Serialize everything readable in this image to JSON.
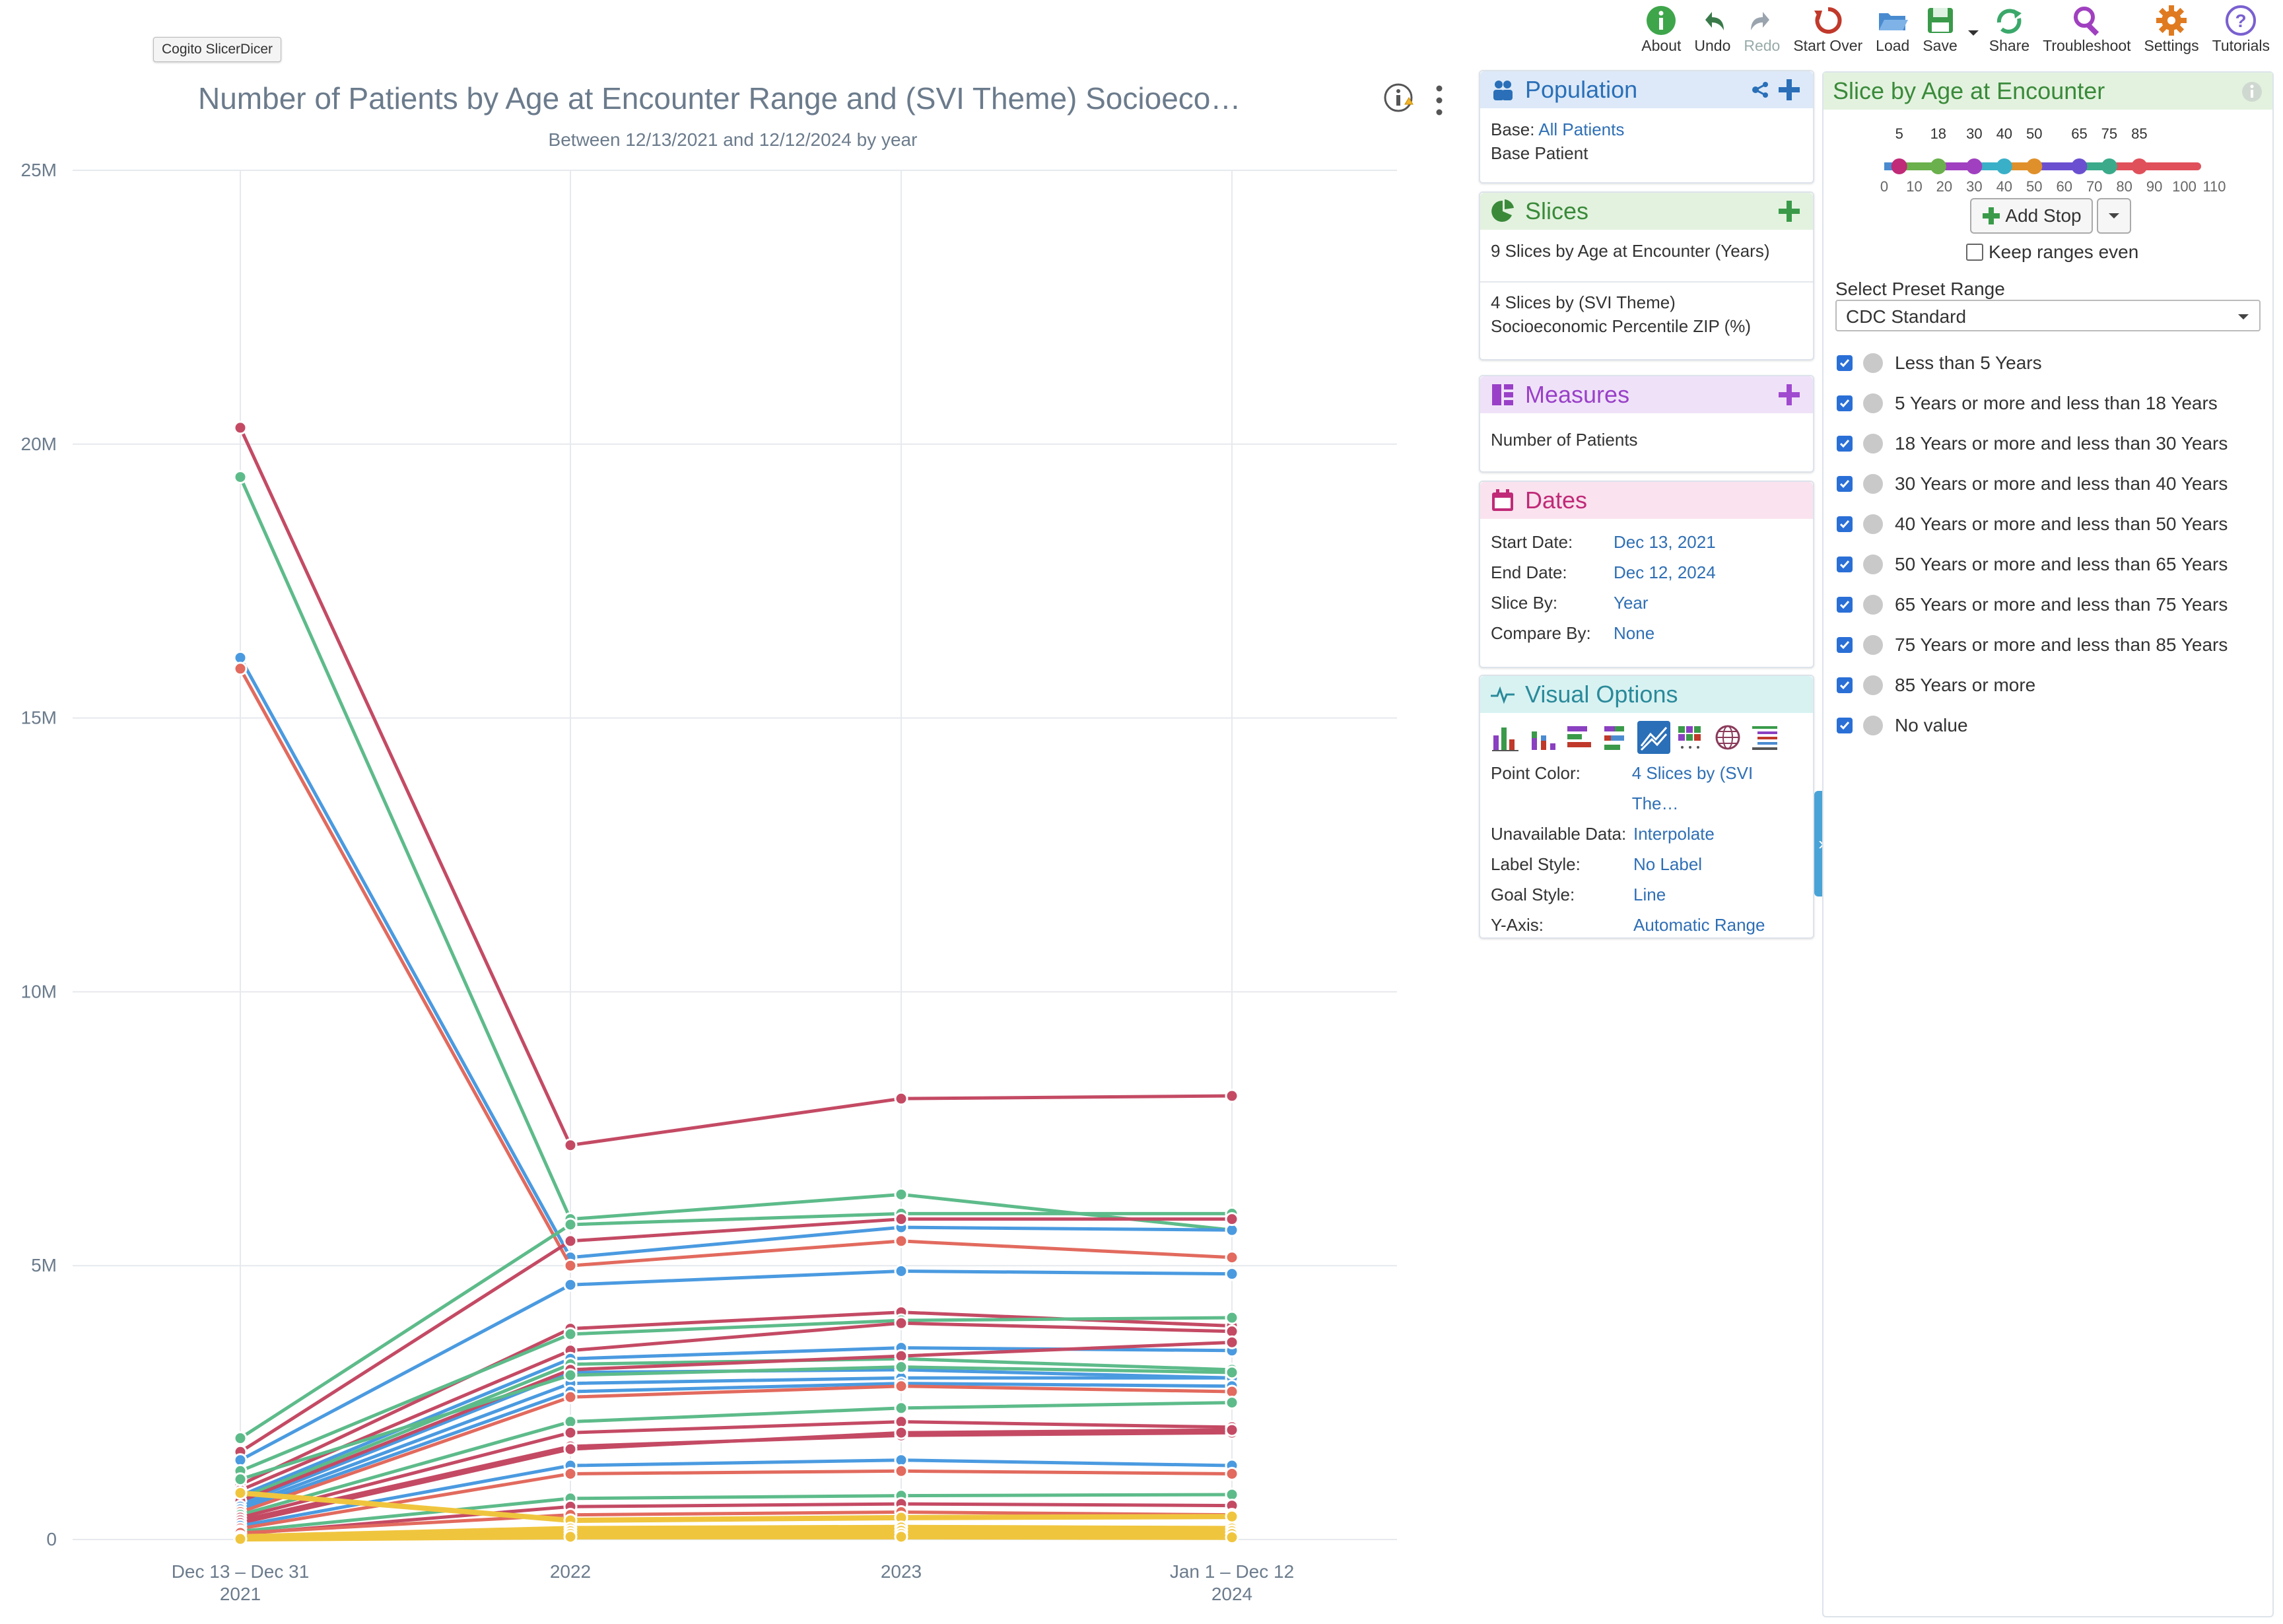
{
  "tooltip": "Cogito SlicerDicer",
  "toolbar": [
    {
      "id": "about",
      "label": "About",
      "icon": "info-circle-icon",
      "color": "#3ea54a"
    },
    {
      "id": "undo",
      "label": "Undo",
      "icon": "undo-icon",
      "color": "#3a7a4a"
    },
    {
      "id": "redo",
      "label": "Redo",
      "icon": "redo-icon",
      "color": "#9aa4ae"
    },
    {
      "id": "startover",
      "label": "Start Over",
      "icon": "start-over-icon",
      "color": "#c0392b"
    },
    {
      "id": "load",
      "label": "Load",
      "icon": "folder-icon",
      "color": "#4a8bd0"
    },
    {
      "id": "save",
      "label": "Save",
      "icon": "save-icon",
      "color": "#3a9a4a"
    },
    {
      "id": "share",
      "label": "Share",
      "icon": "share-icon",
      "color": "#3aa86a"
    },
    {
      "id": "troubleshoot",
      "label": "Troubleshoot",
      "icon": "magnifier-icon",
      "color": "#a040c0"
    },
    {
      "id": "settings",
      "label": "Settings",
      "icon": "gear-icon",
      "color": "#e07a20"
    },
    {
      "id": "tutorials",
      "label": "Tutorials",
      "icon": "question-icon",
      "color": "#7a60d0"
    }
  ],
  "chart": {
    "title": "Number of Patients by Age at Encounter Range and (SVI Theme) Socioeco…",
    "subtitle": "Between 12/13/2021 and 12/12/2024 by year"
  },
  "chart_data": {
    "type": "line",
    "categories": [
      "Dec 13 – Dec 31\n2021",
      "2022",
      "2023",
      "Jan 1 – Dec 12\n2024"
    ],
    "x_labels_line1": [
      "Dec 13 – Dec 31",
      "2022",
      "2023",
      "Jan 1 – Dec 12"
    ],
    "x_labels_line2": [
      "2021",
      "",
      "",
      "2024"
    ],
    "y_ticks": [
      "0",
      "5M",
      "10M",
      "15M",
      "20M",
      "25M"
    ],
    "y_tick_values": [
      0,
      5,
      10,
      15,
      20,
      25
    ],
    "ylim": [
      0,
      25
    ],
    "y_unit": "M",
    "grid": true,
    "colors": {
      "red": "#c44a64",
      "green": "#5dbb8a",
      "blue": "#4a9ae0",
      "orange": "#e26a5e",
      "yellow": "#f0c53e"
    },
    "series": [
      {
        "color": "red",
        "values": [
          20.3,
          7.2,
          8.05,
          8.1
        ]
      },
      {
        "color": "green",
        "values": [
          19.4,
          5.85,
          6.3,
          5.65
        ]
      },
      {
        "color": "blue",
        "values": [
          16.1,
          5.15,
          5.7,
          5.65
        ]
      },
      {
        "color": "orange",
        "values": [
          15.9,
          5.0,
          5.45,
          5.15
        ]
      },
      {
        "color": "green",
        "values": [
          1.85,
          5.75,
          5.95,
          5.95
        ]
      },
      {
        "color": "red",
        "values": [
          1.6,
          5.45,
          5.85,
          5.85
        ]
      },
      {
        "color": "blue",
        "values": [
          1.45,
          4.65,
          4.9,
          4.85
        ]
      },
      {
        "color": "red",
        "values": [
          1.0,
          3.85,
          4.15,
          3.9
        ]
      },
      {
        "color": "green",
        "values": [
          1.25,
          3.75,
          4.0,
          4.05
        ]
      },
      {
        "color": "red",
        "values": [
          0.9,
          3.45,
          3.95,
          3.8
        ]
      },
      {
        "color": "blue",
        "values": [
          0.8,
          3.3,
          3.5,
          3.45
        ]
      },
      {
        "color": "green",
        "values": [
          0.75,
          3.2,
          3.3,
          3.1
        ]
      },
      {
        "color": "blue",
        "values": [
          0.65,
          3.05,
          3.1,
          2.95
        ]
      },
      {
        "color": "red",
        "values": [
          0.7,
          3.1,
          3.35,
          3.6
        ]
      },
      {
        "color": "blue",
        "values": [
          0.6,
          2.85,
          2.95,
          2.95
        ]
      },
      {
        "color": "blue",
        "values": [
          0.55,
          2.7,
          2.85,
          2.8
        ]
      },
      {
        "color": "orange",
        "values": [
          0.5,
          2.6,
          2.8,
          2.7
        ]
      },
      {
        "color": "green",
        "values": [
          0.45,
          2.15,
          2.4,
          2.5
        ]
      },
      {
        "color": "red",
        "values": [
          0.4,
          1.95,
          2.15,
          2.05
        ]
      },
      {
        "color": "red",
        "values": [
          0.35,
          1.7,
          1.9,
          1.95
        ]
      },
      {
        "color": "red",
        "values": [
          0.3,
          1.65,
          1.95,
          2.0
        ]
      },
      {
        "color": "blue",
        "values": [
          0.25,
          1.35,
          1.45,
          1.35
        ]
      },
      {
        "color": "orange",
        "values": [
          0.2,
          1.2,
          1.25,
          1.2
        ]
      },
      {
        "color": "green",
        "values": [
          0.15,
          0.75,
          0.8,
          0.82
        ]
      },
      {
        "color": "red",
        "values": [
          0.1,
          0.6,
          0.65,
          0.62
        ]
      },
      {
        "color": "orange",
        "values": [
          0.12,
          0.45,
          0.5,
          0.45
        ]
      },
      {
        "color": "yellow",
        "values": [
          0.85,
          0.35,
          0.4,
          0.42
        ]
      },
      {
        "color": "yellow",
        "values": [
          0.05,
          0.2,
          0.22,
          0.2
        ]
      },
      {
        "color": "yellow",
        "values": [
          0.03,
          0.15,
          0.16,
          0.15
        ]
      },
      {
        "color": "yellow",
        "values": [
          0.02,
          0.1,
          0.1,
          0.1
        ]
      },
      {
        "color": "yellow",
        "values": [
          0.01,
          0.05,
          0.05,
          0.04
        ]
      },
      {
        "color": "green",
        "values": [
          1.1,
          3.0,
          3.15,
          3.05
        ]
      }
    ]
  },
  "population": {
    "header": "Population",
    "base_label": "Base:",
    "base_value": "All Patients",
    "sub": "Base Patient"
  },
  "slices": {
    "header": "Slices",
    "item1": "9 Slices by Age at Encounter (Years)",
    "item2_line1": "4 Slices by (SVI Theme)",
    "item2_line2": "Socioeconomic Percentile ZIP (%)"
  },
  "measures": {
    "header": "Measures",
    "item": "Number of Patients"
  },
  "dates": {
    "header": "Dates",
    "rows": [
      {
        "k": "Start Date:",
        "v": "Dec 13, 2021"
      },
      {
        "k": "End Date:",
        "v": "Dec 12, 2024"
      },
      {
        "k": "Slice By:",
        "v": "Year"
      },
      {
        "k": "Compare By:",
        "v": "None"
      }
    ]
  },
  "visual_options": {
    "header": "Visual Options",
    "rows": [
      {
        "k": "Point Color:",
        "v": "4 Slices by (SVI The…"
      },
      {
        "k": "Unavailable Data:",
        "v": "Interpolate"
      },
      {
        "k": "Label Style:",
        "v": "No Label"
      },
      {
        "k": "Goal Style:",
        "v": "Line"
      },
      {
        "k": "Y-Axis:",
        "v": "Automatic Range"
      }
    ]
  },
  "slice_panel": {
    "header": "Slice by Age at Encounter",
    "stops_top": [
      "5",
      "18",
      "30",
      "40",
      "50",
      "65",
      "75",
      "85"
    ],
    "scale": [
      "0",
      "10",
      "20",
      "30",
      "40",
      "50",
      "60",
      "70",
      "80",
      "90",
      "100",
      "110"
    ],
    "add_stop": "Add Stop",
    "keep_even": "Keep ranges even",
    "preset_label": "Select Preset Range",
    "preset_value": "CDC Standard",
    "ranges": [
      "Less than 5 Years",
      "5 Years or more and less than 18 Years",
      "18 Years or more and less than 30 Years",
      "30 Years or more and less than 40 Years",
      "40 Years or more and less than 50 Years",
      "50 Years or more and less than 65 Years",
      "65 Years or more and less than 75 Years",
      "75 Years or more and less than 85 Years",
      "85 Years or more",
      "No value"
    ]
  }
}
